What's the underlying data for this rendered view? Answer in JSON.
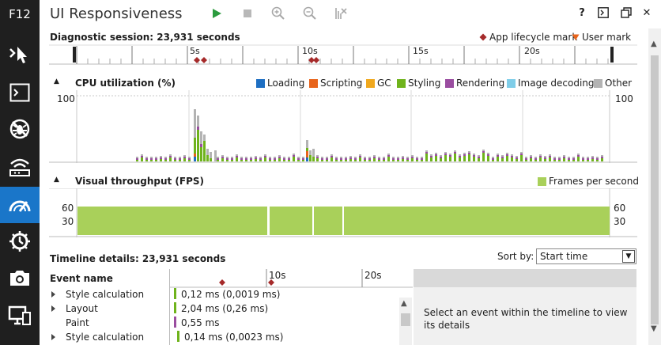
{
  "app": {
    "f12_label": "F12",
    "title": "UI Responsiveness"
  },
  "toolbar": {
    "icons": [
      "play-icon",
      "stop-icon",
      "zoom-in-icon",
      "zoom-out-icon",
      "clear-selection-icon"
    ],
    "right_icons": [
      "help-icon",
      "console-icon",
      "undock-icon",
      "close-icon"
    ],
    "help_label": "?",
    "close_label": "✕"
  },
  "rail": [
    "dom-explorer-icon",
    "console-icon",
    "debugger-icon",
    "network-icon",
    "ui-responsiveness-icon",
    "profiler-icon",
    "memory-icon",
    "emulation-icon"
  ],
  "session": {
    "label": "Diagnostic session: 23,931 seconds",
    "legend_lifecycle": "App lifecycle mark",
    "legend_user": "User mark",
    "ticks": [
      "5s",
      "10s",
      "15s",
      "20s"
    ]
  },
  "cpu": {
    "title": "CPU utilization (%)",
    "y_left": "100",
    "y_right": "100",
    "legend": [
      {
        "name": "Loading",
        "color": "#1e6fc2"
      },
      {
        "name": "Scripting",
        "color": "#e8641b"
      },
      {
        "name": "GC",
        "color": "#f0a81e"
      },
      {
        "name": "Styling",
        "color": "#6fb31c"
      },
      {
        "name": "Rendering",
        "color": "#9a4da0"
      },
      {
        "name": "Image decoding",
        "color": "#7fcde8"
      },
      {
        "name": "Other",
        "color": "#b3b3b3"
      }
    ]
  },
  "fps": {
    "title": "Visual throughput (FPS)",
    "legend": "Frames per second",
    "color": "#a9d05a",
    "y_60": "60",
    "y_30": "30",
    "y_60_r": "60",
    "y_30_r": "30"
  },
  "timeline": {
    "label": "Timeline details: 23,931 seconds",
    "sort_label": "Sort by:",
    "sort_value": "Start time",
    "column_event": "Event name",
    "ticks": [
      "10s",
      "20s"
    ],
    "events": [
      {
        "name": "Style calculation",
        "expand": true,
        "value": "0,12 ms (0,0019 ms)",
        "color": "#6fb31c"
      },
      {
        "name": "Layout",
        "expand": true,
        "value": "2,04 ms (0,26 ms)",
        "color": "#6fb31c"
      },
      {
        "name": "Paint",
        "expand": false,
        "value": "0,55 ms",
        "color": "#9a4da0"
      },
      {
        "name": "Style calculation",
        "expand": true,
        "value": "0,14 ms (0,0023 ms)",
        "color": "#6fb31c"
      }
    ],
    "details_message": "Select an event within the timeline to view its details"
  }
}
